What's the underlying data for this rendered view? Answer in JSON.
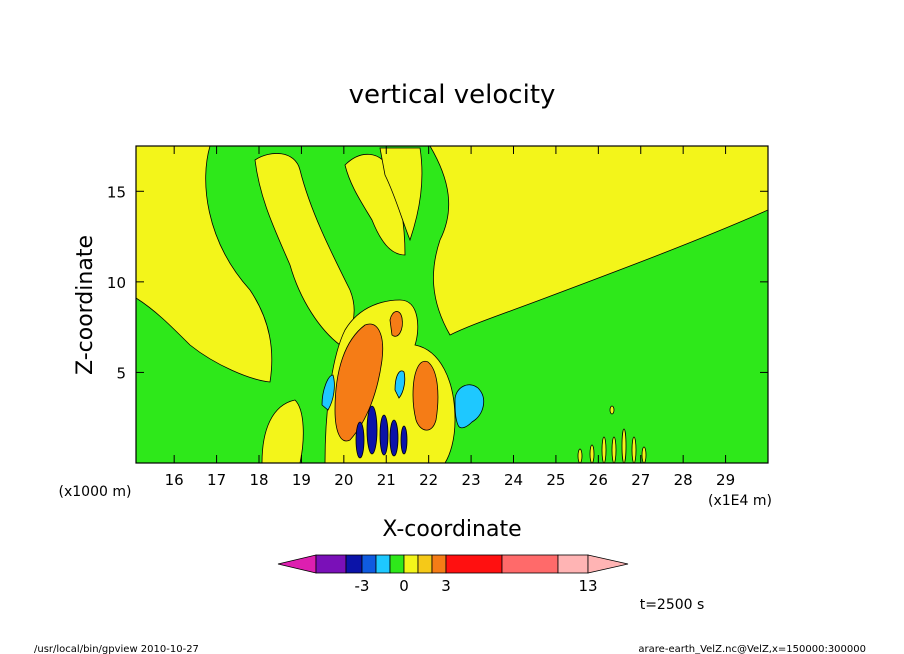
{
  "chart_data": {
    "type": "heatmap",
    "title": "vertical velocity",
    "xlabel": "X-coordinate",
    "ylabel": "Z-coordinate",
    "x_unit": "(x1E4 m)",
    "y_unit": "(x1000 m)",
    "x_ticks": [
      "16",
      "17",
      "18",
      "19",
      "20",
      "21",
      "22",
      "23",
      "24",
      "25",
      "26",
      "27",
      "28",
      "29"
    ],
    "y_ticks": [
      "5",
      "10",
      "15"
    ],
    "xlim": [
      15.1,
      30.0
    ],
    "ylim": [
      0.0,
      17.5
    ],
    "colorbar": {
      "labels": [
        {
          "text": "-3",
          "value": -3
        },
        {
          "text": "0",
          "value": 0
        },
        {
          "text": "3",
          "value": 3
        },
        {
          "text": "13",
          "value": 13
        }
      ],
      "colors": [
        "#dd1fb0",
        "#7a10b8",
        "#0b13a8",
        "#0f5be0",
        "#1ec8ff",
        "#2ee81a",
        "#f3f51a",
        "#f5c918",
        "#f57c16",
        "#ff1010",
        "#ff6a6a",
        "#ffb4b4"
      ]
    },
    "regions": [
      {
        "name": "yellow-band-left",
        "value": "positive",
        "color": "#f3f51a"
      },
      {
        "name": "green-background",
        "value": "near zero",
        "color": "#2ee81a"
      },
      {
        "name": "orange-core-left",
        "value": "about 5",
        "color": "#f57c16"
      },
      {
        "name": "orange-core-right",
        "value": "about 5",
        "color": "#f57c16"
      },
      {
        "name": "cyan-cell",
        "value": "about -1",
        "color": "#1ec8ff"
      },
      {
        "name": "blue-cells",
        "value": "about -3",
        "color": "#0b13a8"
      }
    ],
    "grid": false,
    "legend": "bottom"
  },
  "annotation": {
    "time": "t=2500 s"
  },
  "footer": {
    "left": "/usr/local/bin/gpview   2010-10-27",
    "right": "arare-earth_VelZ.nc@VelZ,x=150000:300000"
  }
}
